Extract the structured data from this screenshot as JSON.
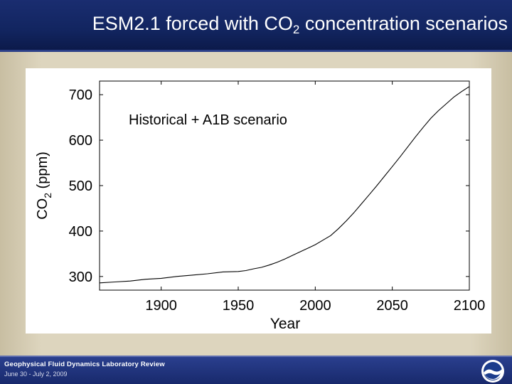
{
  "slide": {
    "title_main": "ESM2.1 forced with CO",
    "title_sub": "2",
    "title_rest": " concentration scenarios"
  },
  "footer": {
    "title": "Geophysical Fluid Dynamics Laboratory Review",
    "date": "June 30 - July 2, 2009"
  },
  "chart_data": {
    "type": "line",
    "annotation": "Historical + A1B scenario",
    "xlabel": "Year",
    "ylabel_main": "CO",
    "ylabel_sub": "2",
    "ylabel_rest": " (ppm)",
    "xlim": [
      1860,
      2100
    ],
    "ylim": [
      270,
      730
    ],
    "xticks": [
      1900,
      1950,
      2000,
      2050,
      2100
    ],
    "yticks": [
      300,
      400,
      500,
      600,
      700
    ],
    "grid": false,
    "series": [
      {
        "x": [
          1860,
          1870,
          1880,
          1890,
          1900,
          1910,
          1920,
          1930,
          1940,
          1950,
          1955,
          1960,
          1965,
          1970,
          1975,
          1980,
          1985,
          1990,
          1995,
          2000,
          2005,
          2010,
          2015,
          2020,
          2025,
          2030,
          2035,
          2040,
          2045,
          2050,
          2055,
          2060,
          2065,
          2070,
          2075,
          2080,
          2085,
          2090,
          2095,
          2100
        ],
        "y": [
          286,
          288,
          290,
          294,
          296,
          300,
          303,
          306,
          310,
          311,
          313,
          317,
          320,
          325,
          331,
          338,
          346,
          354,
          362,
          370,
          380,
          390,
          405,
          422,
          440,
          460,
          480,
          500,
          521,
          542,
          563,
          585,
          607,
          628,
          648,
          665,
          680,
          695,
          707,
          718
        ]
      }
    ]
  }
}
